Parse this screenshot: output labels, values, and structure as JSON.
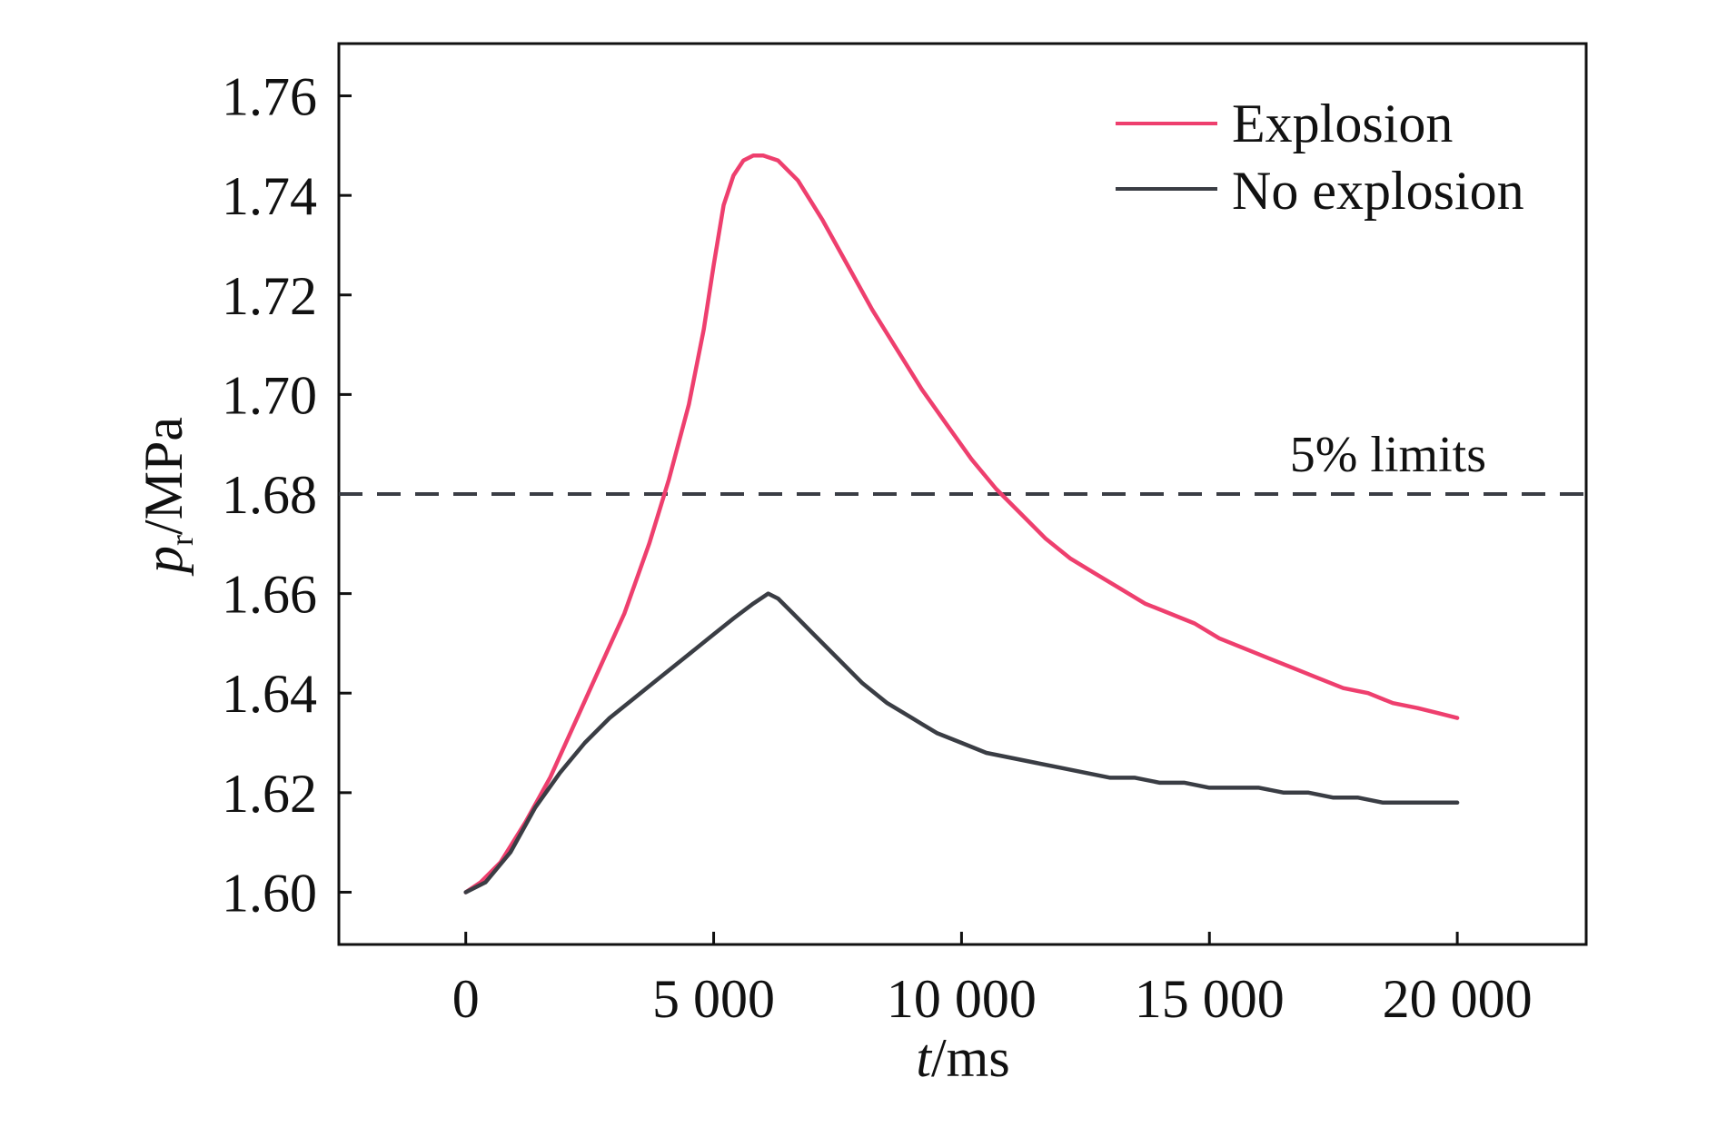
{
  "chart_data": {
    "type": "line",
    "x_label_italic": "t",
    "x_label_rest": "/ms",
    "y_label_italic": "p",
    "y_label_sub": "r",
    "y_label_rest": "/MPa",
    "xlim": [
      -2560,
      22600
    ],
    "ylim": [
      1.5895,
      1.7705
    ],
    "x_ticks": [
      0,
      5000,
      10000,
      15000,
      20000
    ],
    "x_tick_labels": [
      "0",
      "5 000",
      "10 000",
      "15 000",
      "20 000"
    ],
    "y_ticks": [
      1.6,
      1.62,
      1.64,
      1.66,
      1.68,
      1.7,
      1.72,
      1.74,
      1.76
    ],
    "y_tick_labels": [
      "1.60",
      "1.62",
      "1.64",
      "1.66",
      "1.68",
      "1.70",
      "1.72",
      "1.74",
      "1.76"
    ],
    "grid": false,
    "legend_position": "top-right",
    "series": [
      {
        "name": "Explosion",
        "color": "#ee3f6e",
        "x": [
          0,
          300,
          700,
          1200,
          1700,
          2200,
          2700,
          3200,
          3700,
          4100,
          4500,
          4800,
          5000,
          5200,
          5400,
          5600,
          5800,
          6000,
          6300,
          6700,
          7200,
          7700,
          8200,
          8700,
          9200,
          9700,
          10200,
          10700,
          11200,
          11700,
          12200,
          12700,
          13200,
          13700,
          14200,
          14700,
          15200,
          15700,
          16200,
          16700,
          17200,
          17700,
          18200,
          18700,
          19200,
          19600,
          20000
        ],
        "y": [
          1.6,
          1.602,
          1.606,
          1.614,
          1.623,
          1.634,
          1.645,
          1.656,
          1.67,
          1.683,
          1.698,
          1.713,
          1.726,
          1.738,
          1.744,
          1.747,
          1.748,
          1.748,
          1.747,
          1.743,
          1.735,
          1.726,
          1.717,
          1.709,
          1.701,
          1.694,
          1.687,
          1.681,
          1.676,
          1.671,
          1.667,
          1.664,
          1.661,
          1.658,
          1.656,
          1.654,
          1.651,
          1.649,
          1.647,
          1.645,
          1.643,
          1.641,
          1.64,
          1.638,
          1.637,
          1.636,
          1.635
        ]
      },
      {
        "name": "No explosion",
        "color": "#3a3d44",
        "x": [
          0,
          400,
          900,
          1400,
          1900,
          2400,
          2900,
          3400,
          3900,
          4400,
          4900,
          5400,
          5800,
          6100,
          6300,
          6600,
          7000,
          7500,
          8000,
          8500,
          9000,
          9500,
          10000,
          10500,
          11000,
          11500,
          12000,
          12500,
          13000,
          13500,
          14000,
          14500,
          15000,
          15500,
          16000,
          16500,
          17000,
          17500,
          18000,
          18500,
          19000,
          19500,
          20000
        ],
        "y": [
          1.6,
          1.602,
          1.608,
          1.617,
          1.624,
          1.63,
          1.635,
          1.639,
          1.643,
          1.647,
          1.651,
          1.655,
          1.658,
          1.66,
          1.659,
          1.656,
          1.652,
          1.647,
          1.642,
          1.638,
          1.635,
          1.632,
          1.63,
          1.628,
          1.627,
          1.626,
          1.625,
          1.624,
          1.623,
          1.623,
          1.622,
          1.622,
          1.621,
          1.621,
          1.621,
          1.62,
          1.62,
          1.619,
          1.619,
          1.618,
          1.618,
          1.618,
          1.618
        ]
      }
    ],
    "reference_line": {
      "y": 1.68,
      "label": "5% limits",
      "style": "dashed",
      "color": "#3a3d44"
    }
  }
}
